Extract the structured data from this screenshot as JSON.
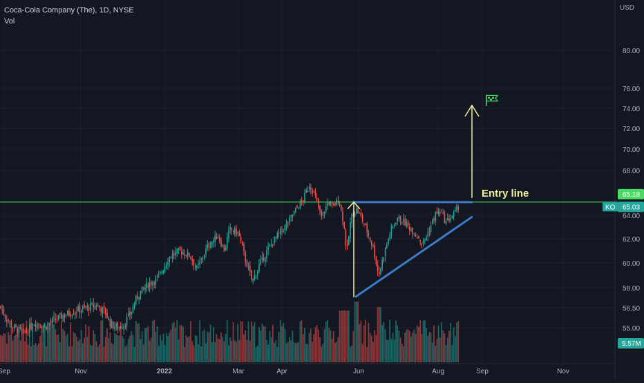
{
  "chart_data": {
    "type": "candlestick",
    "title": "Coca-Cola Company (The), 1D, NYSE",
    "volume_label": "Vol",
    "currency": "USD",
    "symbol": "KO",
    "y_ticks": [
      80.0,
      76.0,
      74.0,
      72.0,
      70.0,
      68.0,
      64.0,
      62.0,
      60.0,
      58.0,
      56.5,
      55.0
    ],
    "x_ticks": [
      "Sep",
      "Nov",
      "2022",
      "Mar",
      "Apr",
      "Jun",
      "Aug",
      "Sep",
      "Nov"
    ],
    "price_badges": {
      "entry_level": "65.18",
      "last_price": "65.03",
      "volume": "9.57M"
    },
    "entry_level": 65.18,
    "last_price": 65.03,
    "annotations": {
      "entry_text": "Entry line",
      "flag_icon": "checkered-flag-icon"
    },
    "price_path": [
      {
        "t": 0,
        "p": 56.6
      },
      {
        "t": 8,
        "p": 55.8
      },
      {
        "t": 20,
        "p": 55.0
      },
      {
        "t": 35,
        "p": 54.6
      },
      {
        "t": 50,
        "p": 55.4
      },
      {
        "t": 65,
        "p": 55.1
      },
      {
        "t": 80,
        "p": 55.6
      },
      {
        "t": 95,
        "p": 56.0
      },
      {
        "t": 110,
        "p": 56.3
      },
      {
        "t": 125,
        "p": 56.5
      },
      {
        "t": 140,
        "p": 56.7
      },
      {
        "t": 152,
        "p": 56.2
      },
      {
        "t": 160,
        "p": 55.3
      },
      {
        "t": 170,
        "p": 55.0
      },
      {
        "t": 180,
        "p": 55.3
      },
      {
        "t": 190,
        "p": 56.2
      },
      {
        "t": 200,
        "p": 57.5
      },
      {
        "t": 215,
        "p": 58.3
      },
      {
        "t": 230,
        "p": 58.9
      },
      {
        "t": 245,
        "p": 60.5
      },
      {
        "t": 260,
        "p": 61.0
      },
      {
        "t": 275,
        "p": 60.6
      },
      {
        "t": 285,
        "p": 59.5
      },
      {
        "t": 300,
        "p": 61.3
      },
      {
        "t": 315,
        "p": 62.3
      },
      {
        "t": 325,
        "p": 61.0
      },
      {
        "t": 332,
        "p": 62.8
      },
      {
        "t": 345,
        "p": 62.5
      },
      {
        "t": 355,
        "p": 60.3
      },
      {
        "t": 365,
        "p": 58.5
      },
      {
        "t": 375,
        "p": 59.8
      },
      {
        "t": 385,
        "p": 60.8
      },
      {
        "t": 395,
        "p": 61.8
      },
      {
        "t": 405,
        "p": 62.5
      },
      {
        "t": 415,
        "p": 63.2
      },
      {
        "t": 428,
        "p": 64.5
      },
      {
        "t": 438,
        "p": 65.3
      },
      {
        "t": 448,
        "p": 66.8
      },
      {
        "t": 457,
        "p": 65.5
      },
      {
        "t": 465,
        "p": 63.8
      },
      {
        "t": 475,
        "p": 65.2
      },
      {
        "t": 482,
        "p": 64.7
      },
      {
        "t": 490,
        "p": 65.5
      },
      {
        "t": 497,
        "p": 63.5
      },
      {
        "t": 502,
        "p": 60.8
      },
      {
        "t": 508,
        "p": 63.8
      },
      {
        "t": 515,
        "p": 64.6
      },
      {
        "t": 522,
        "p": 63.9
      },
      {
        "t": 530,
        "p": 62.8
      },
      {
        "t": 540,
        "p": 61.3
      },
      {
        "t": 548,
        "p": 59.0
      },
      {
        "t": 556,
        "p": 60.8
      },
      {
        "t": 565,
        "p": 62.6
      },
      {
        "t": 575,
        "p": 63.8
      },
      {
        "t": 585,
        "p": 63.4
      },
      {
        "t": 595,
        "p": 62.8
      },
      {
        "t": 605,
        "p": 62.2
      },
      {
        "t": 612,
        "p": 61.6
      },
      {
        "t": 620,
        "p": 62.6
      },
      {
        "t": 630,
        "p": 64.1
      },
      {
        "t": 638,
        "p": 64.3
      },
      {
        "t": 645,
        "p": 63.4
      },
      {
        "t": 652,
        "p": 63.8
      },
      {
        "t": 658,
        "p": 64.2
      },
      {
        "t": 665,
        "p": 65.0
      }
    ]
  }
}
